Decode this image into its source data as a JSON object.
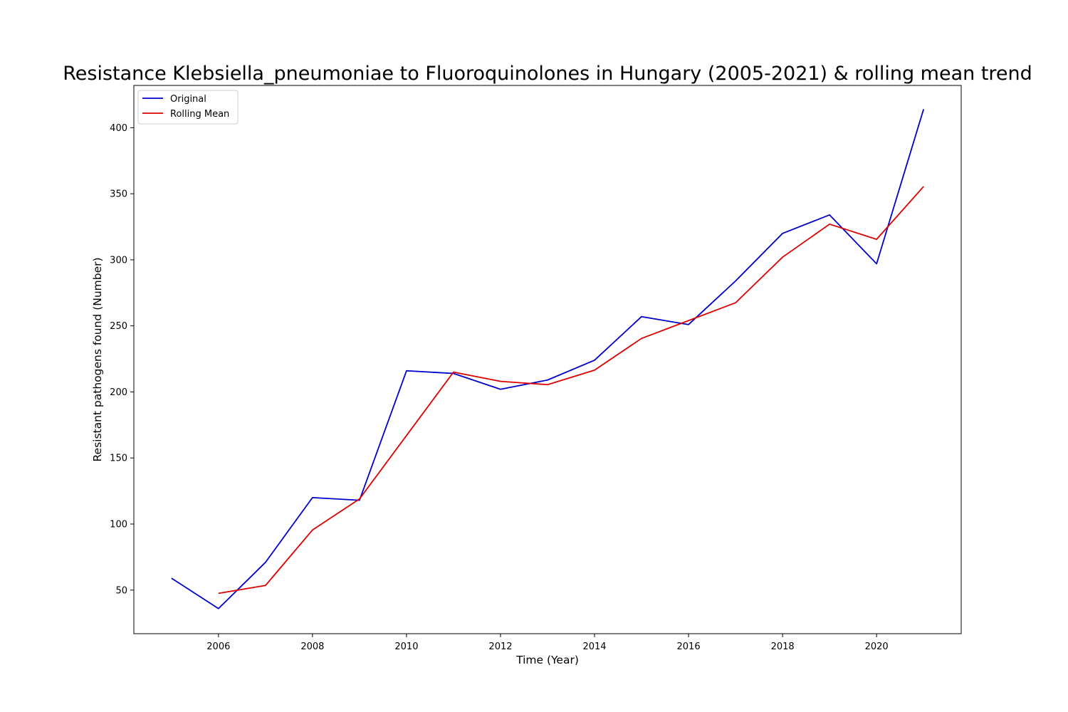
{
  "chart_data": {
    "type": "line",
    "title": "Resistance Klebsiella_pneumoniae to Fluoroquinolones in Hungary (2005-2021) & rolling mean trend",
    "xlabel": "Time (Year)",
    "ylabel": "Resistant pathogens found (Number)",
    "xlim": [
      2004.2,
      2021.8
    ],
    "ylim": [
      17,
      432
    ],
    "xticks": [
      2006,
      2008,
      2010,
      2012,
      2014,
      2016,
      2018,
      2020
    ],
    "yticks": [
      50,
      100,
      150,
      200,
      250,
      300,
      350,
      400
    ],
    "grid": false,
    "legend_position": "upper-left",
    "series": [
      {
        "name": "Original",
        "color": "#0000cc",
        "x": [
          2005,
          2006,
          2007,
          2008,
          2009,
          2010,
          2011,
          2012,
          2013,
          2014,
          2015,
          2016,
          2017,
          2018,
          2019,
          2020,
          2021
        ],
        "y": [
          59,
          36,
          71,
          120,
          118,
          216,
          214,
          202,
          209,
          224,
          257,
          251,
          284,
          320,
          334,
          297,
          414
        ]
      },
      {
        "name": "Rolling Mean",
        "color": "#dd0000",
        "x": [
          2006,
          2007,
          2008,
          2009,
          2010,
          2011,
          2012,
          2013,
          2014,
          2015,
          2016,
          2017,
          2018,
          2019,
          2020,
          2021
        ],
        "y": [
          47.5,
          53.5,
          95.5,
          119,
          167,
          215,
          208,
          205.5,
          216.5,
          240.5,
          254,
          267.5,
          302,
          327,
          315.5,
          355.5
        ]
      }
    ]
  }
}
